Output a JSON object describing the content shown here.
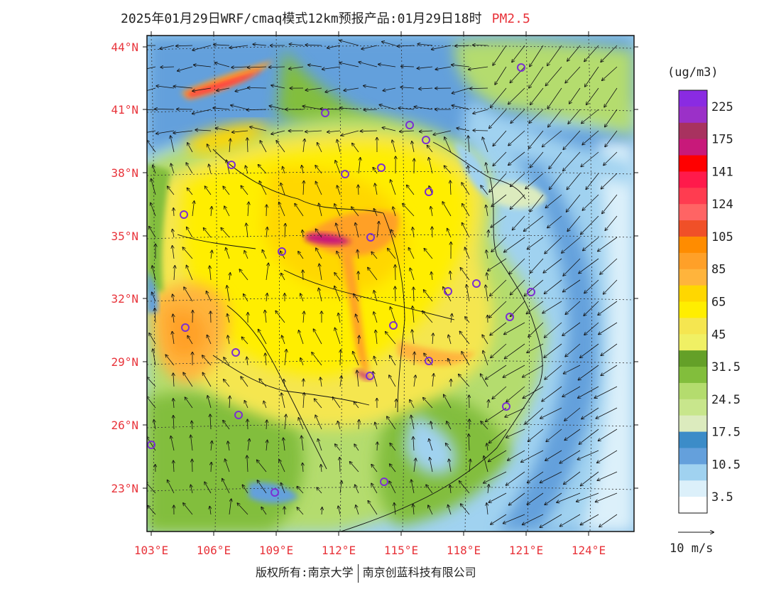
{
  "title": {
    "main": "2025年01月29日WRF/cmaq模式12km预报产品:01月29日18时",
    "species": "PM2.5"
  },
  "map": {
    "lat_labels": [
      "44°N",
      "41°N",
      "38°N",
      "35°N",
      "32°N",
      "29°N",
      "26°N",
      "23°N"
    ],
    "lon_labels": [
      "103°E",
      "106°E",
      "109°E",
      "112°E",
      "115°E",
      "118°E",
      "121°E",
      "124°E"
    ],
    "label_color": "#e8333a"
  },
  "legend": {
    "unit": "(ug/m3)",
    "levels": [
      {
        "color": "#8a2be2",
        "label": "225"
      },
      {
        "color": "#9b30c8",
        "label": ""
      },
      {
        "color": "#a8325f",
        "label": "175"
      },
      {
        "color": "#c8197a",
        "label": ""
      },
      {
        "color": "#ff0000",
        "label": "141"
      },
      {
        "color": "#ff1a4b",
        "label": ""
      },
      {
        "color": "#ff3c50",
        "label": "124"
      },
      {
        "color": "#ff6464",
        "label": ""
      },
      {
        "color": "#f05028",
        "label": "105"
      },
      {
        "color": "#ff8c00",
        "label": ""
      },
      {
        "color": "#ffa028",
        "label": "85"
      },
      {
        "color": "#ffb43c",
        "label": ""
      },
      {
        "color": "#ffd700",
        "label": "65"
      },
      {
        "color": "#ffee00",
        "label": ""
      },
      {
        "color": "#f5e650",
        "label": "45"
      },
      {
        "color": "#f0f064",
        "label": ""
      },
      {
        "color": "#64a028",
        "label": "31.5"
      },
      {
        "color": "#82be3c",
        "label": ""
      },
      {
        "color": "#b4dc6e",
        "label": "24.5"
      },
      {
        "color": "#c8e68c",
        "label": ""
      },
      {
        "color": "#dcebbe",
        "label": "17.5"
      },
      {
        "color": "#3c8cc8",
        "label": ""
      },
      {
        "color": "#64a0dc",
        "label": "10.5"
      },
      {
        "color": "#a0d2f0",
        "label": ""
      },
      {
        "color": "#dcf0fa",
        "label": "3.5"
      },
      {
        "color": "#ffffff",
        "label": ""
      }
    ]
  },
  "wind_reference": "10 m/s",
  "copyright": {
    "left": "版权所有:南京大学",
    "right": "南京创蓝科技有限公司"
  }
}
